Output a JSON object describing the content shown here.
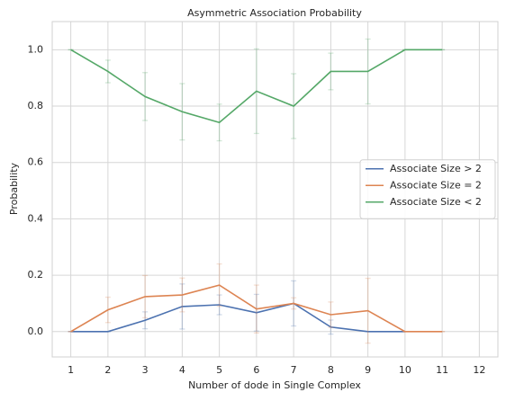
{
  "chart_data": {
    "type": "line",
    "title": "Asymmetric Association Probability",
    "x_label": "Number of dode in Single Complex",
    "y_label": "Probability",
    "xlim": [
      0.5,
      12.5
    ],
    "xticks": [
      1,
      2,
      3,
      4,
      5,
      6,
      7,
      8,
      9,
      10,
      11,
      12
    ],
    "ylim": [
      -0.09,
      1.1
    ],
    "yticks": [
      {
        "value": 0,
        "label": "0.0"
      },
      0.2,
      0.4,
      0.6,
      0.8,
      {
        "value": 1,
        "label": "1.0"
      }
    ],
    "grid": true,
    "legend": "center right",
    "series": [
      {
        "name": "Associate Size > 2",
        "color": "#4c72b0",
        "x": [
          1,
          2,
          3,
          4,
          5,
          6,
          7,
          8,
          9,
          10
        ],
        "values": [
          0,
          0,
          0.04,
          0.089,
          0.095,
          0.067,
          0.1,
          0.016,
          0,
          0
        ],
        "errors": [
          0,
          0,
          0.03,
          0.08,
          0.035,
          0.065,
          0.08,
          0.025,
          0,
          0
        ]
      },
      {
        "name": "Associate Size = 2",
        "color": "#dd8452",
        "x": [
          1,
          2,
          3,
          4,
          5,
          6,
          7,
          8,
          9,
          10,
          11
        ],
        "values": [
          0,
          0.077,
          0.124,
          0.13,
          0.165,
          0.08,
          0.1,
          0.06,
          0.074,
          0,
          0
        ],
        "errors": [
          0,
          0.045,
          0.075,
          0.06,
          0.075,
          0.085,
          0.02,
          0.045,
          0.115,
          0,
          0
        ]
      },
      {
        "name": "Associate Size < 2",
        "color": "#55a868",
        "x": [
          1,
          2,
          3,
          4,
          5,
          6,
          7,
          8,
          9,
          10,
          11
        ],
        "values": [
          1,
          0.923,
          0.834,
          0.78,
          0.742,
          0.853,
          0.8,
          0.923,
          0.923,
          1,
          1
        ],
        "errors": [
          0,
          0.04,
          0.085,
          0.1,
          0.065,
          0.15,
          0.115,
          0.065,
          0.115,
          0,
          0
        ]
      }
    ]
  }
}
